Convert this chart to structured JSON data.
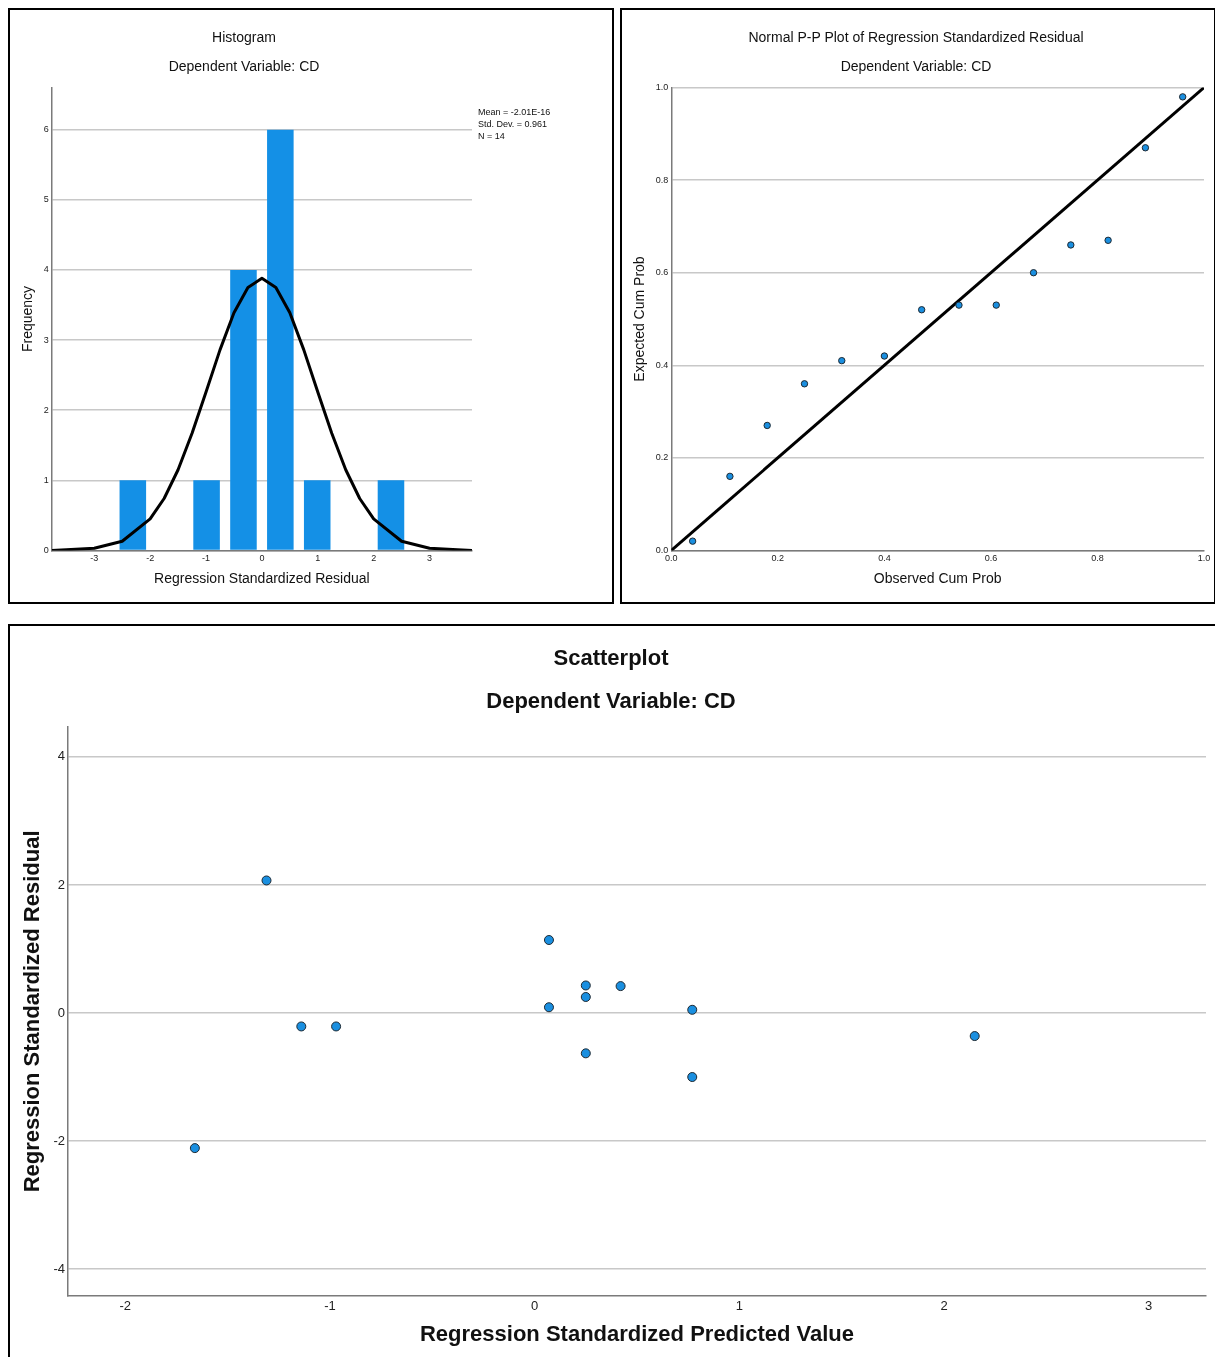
{
  "chart_data": [
    {
      "type": "histogram",
      "title": "Histogram",
      "subtitle": "Dependent Variable: CD",
      "xlabel": "Regression Standardized Residual",
      "ylabel": "Frequency",
      "bins": [
        -2.64,
        -1.98,
        -1.32,
        -0.66,
        0,
        0.66,
        1.32,
        1.98,
        2.64
      ],
      "values": [
        1,
        0,
        1,
        4,
        6,
        1,
        0,
        1
      ],
      "color": "#1490e6",
      "xlim": [
        -3.76,
        3.76
      ],
      "ylim": [
        0,
        6.6
      ],
      "xticks": [
        -3,
        -2,
        -1,
        0,
        1,
        2,
        3
      ],
      "yticks": [
        0,
        1,
        2,
        3,
        4,
        5,
        6
      ],
      "grid": "y",
      "annotations": [
        "Mean = -2.01E-16",
        "Std. Dev. = 0.961",
        "N = 14"
      ],
      "series": [
        {
          "type": "line",
          "color": "#000000",
          "x": [
            -3.76,
            -3.5,
            -3,
            -2.5,
            -2,
            -1.75,
            -1.5,
            -1.25,
            -1,
            -0.75,
            -0.5,
            -0.25,
            0,
            0.25,
            0.5,
            0.75,
            1,
            1.25,
            1.5,
            1.75,
            2,
            2.5,
            3,
            3.5,
            3.76
          ],
          "values": [
            0,
            0.01,
            0.03,
            0.13,
            0.45,
            0.74,
            1.15,
            1.67,
            2.26,
            2.86,
            3.39,
            3.75,
            3.88,
            3.75,
            3.39,
            2.86,
            2.26,
            1.67,
            1.15,
            0.74,
            0.45,
            0.13,
            0.03,
            0.01,
            0
          ]
        }
      ]
    },
    {
      "type": "scatter",
      "title": "Normal P-P Plot of Regression Standardized Residual",
      "subtitle": "Dependent Variable: CD",
      "xlabel": "Observed Cum Prob",
      "ylabel": "Expected Cum Prob",
      "xlim": [
        0,
        1
      ],
      "ylim": [
        0,
        1
      ],
      "xticks": [
        {
          "value": 0,
          "label": "0.0"
        },
        {
          "value": 0.2,
          "label": "0.2"
        },
        {
          "value": 0.4,
          "label": "0.4"
        },
        {
          "value": 0.6,
          "label": "0.6"
        },
        {
          "value": 0.8,
          "label": "0.8"
        },
        {
          "value": 1,
          "label": "1.0"
        }
      ],
      "yticks": [
        {
          "value": 0,
          "label": "0.0"
        },
        {
          "value": 0.2,
          "label": "0.2"
        },
        {
          "value": 0.4,
          "label": "0.4"
        },
        {
          "value": 0.6,
          "label": "0.6"
        },
        {
          "value": 0.8,
          "label": "0.8"
        },
        {
          "value": 1,
          "label": "1.0"
        }
      ],
      "grid": "y",
      "marker": "circle",
      "series": [
        {
          "color": "#1a8fe0",
          "x": [
            0.04,
            0.11,
            0.18,
            0.25,
            0.32,
            0.4,
            0.47,
            0.54,
            0.61,
            0.68,
            0.75,
            0.82,
            0.89,
            0.96
          ],
          "values": [
            0.02,
            0.16,
            0.27,
            0.36,
            0.41,
            0.42,
            0.52,
            0.53,
            0.53,
            0.6,
            0.66,
            0.67,
            0.87,
            0.98
          ]
        },
        {
          "type": "line",
          "color": "#000000",
          "marker": "none",
          "x": [
            0,
            1
          ],
          "values": [
            0,
            1
          ]
        }
      ]
    },
    {
      "type": "scatter",
      "title": "Scatterplot",
      "subtitle": "Dependent Variable: CD",
      "xlabel": "Regression Standardized Predicted Value",
      "ylabel": "Regression Standardized Residual",
      "xlim": [
        -2.28,
        3.28
      ],
      "ylim": [
        -4.42,
        4.47
      ],
      "xticks": [
        -2,
        -1,
        0,
        1,
        2,
        3
      ],
      "yticks": [
        -4,
        -2,
        0,
        2,
        4
      ],
      "grid": "y",
      "marker": "circle",
      "series": [
        {
          "color": "#1a8fe0",
          "x": [
            -1.66,
            -1.31,
            -1.14,
            -0.97,
            0.07,
            0.07,
            0.25,
            0.25,
            0.25,
            0.42,
            0.77,
            0.77,
            2.15
          ],
          "values": [
            -2.11,
            2.07,
            -0.21,
            -0.21,
            1.14,
            0.09,
            0.43,
            0.25,
            -0.63,
            0.42,
            0.05,
            -1.0,
            -0.36
          ]
        }
      ]
    }
  ]
}
